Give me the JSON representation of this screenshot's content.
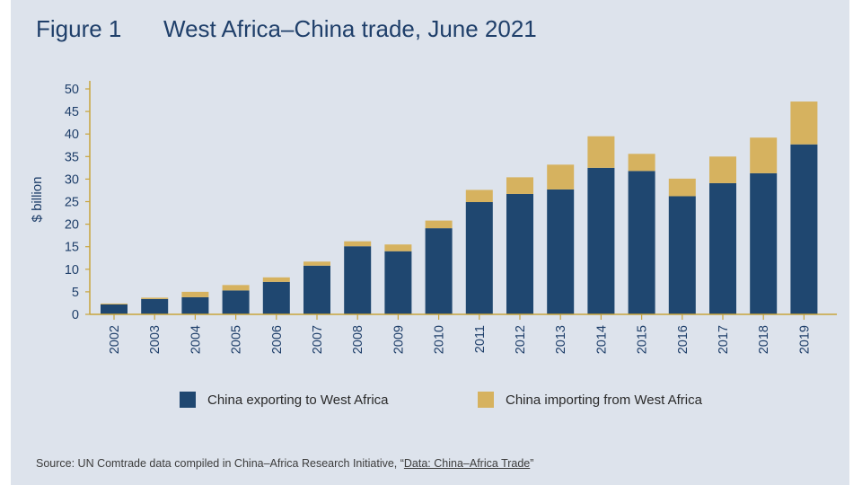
{
  "header": {
    "figure_label": "Figure 1",
    "title": "West Africa–China trade, June 2021"
  },
  "footer": {
    "source_prefix": "Source: UN Comtrade data compiled in China–Africa Research Initiative, “",
    "source_link": "Data: China–Africa Trade",
    "source_suffix": "”"
  },
  "colors": {
    "background": "#dde3ec",
    "exports": "#1f4770",
    "imports": "#d6b25f",
    "axis": "#c8a43c"
  },
  "chart_data": {
    "type": "bar",
    "stacked": true,
    "ylabel": "$ billion",
    "ylim": [
      0,
      50
    ],
    "yticks": [
      0,
      5,
      10,
      15,
      20,
      25,
      30,
      35,
      40,
      45,
      50
    ],
    "grid": false,
    "legend": "bottom",
    "categories": [
      "2002",
      "2003",
      "2004",
      "2005",
      "2006",
      "2007",
      "2008",
      "2009",
      "2010",
      "2011",
      "2012",
      "2013",
      "2014",
      "2015",
      "2016",
      "2017",
      "2018",
      "2019"
    ],
    "series": [
      {
        "name": "China exporting to West Africa",
        "color": "#1f4770",
        "values": [
          2.2,
          3.4,
          3.8,
          5.3,
          7.2,
          10.8,
          15.1,
          14.0,
          19.1,
          24.9,
          26.7,
          27.7,
          32.5,
          31.8,
          26.2,
          29.1,
          31.3,
          37.7
        ]
      },
      {
        "name": "China importing from West Africa",
        "color": "#d6b25f",
        "values": [
          0.2,
          0.3,
          1.2,
          1.2,
          1.0,
          0.9,
          1.1,
          1.5,
          1.7,
          2.7,
          3.7,
          5.5,
          7.0,
          3.8,
          3.9,
          5.9,
          7.9,
          9.5
        ]
      }
    ]
  }
}
